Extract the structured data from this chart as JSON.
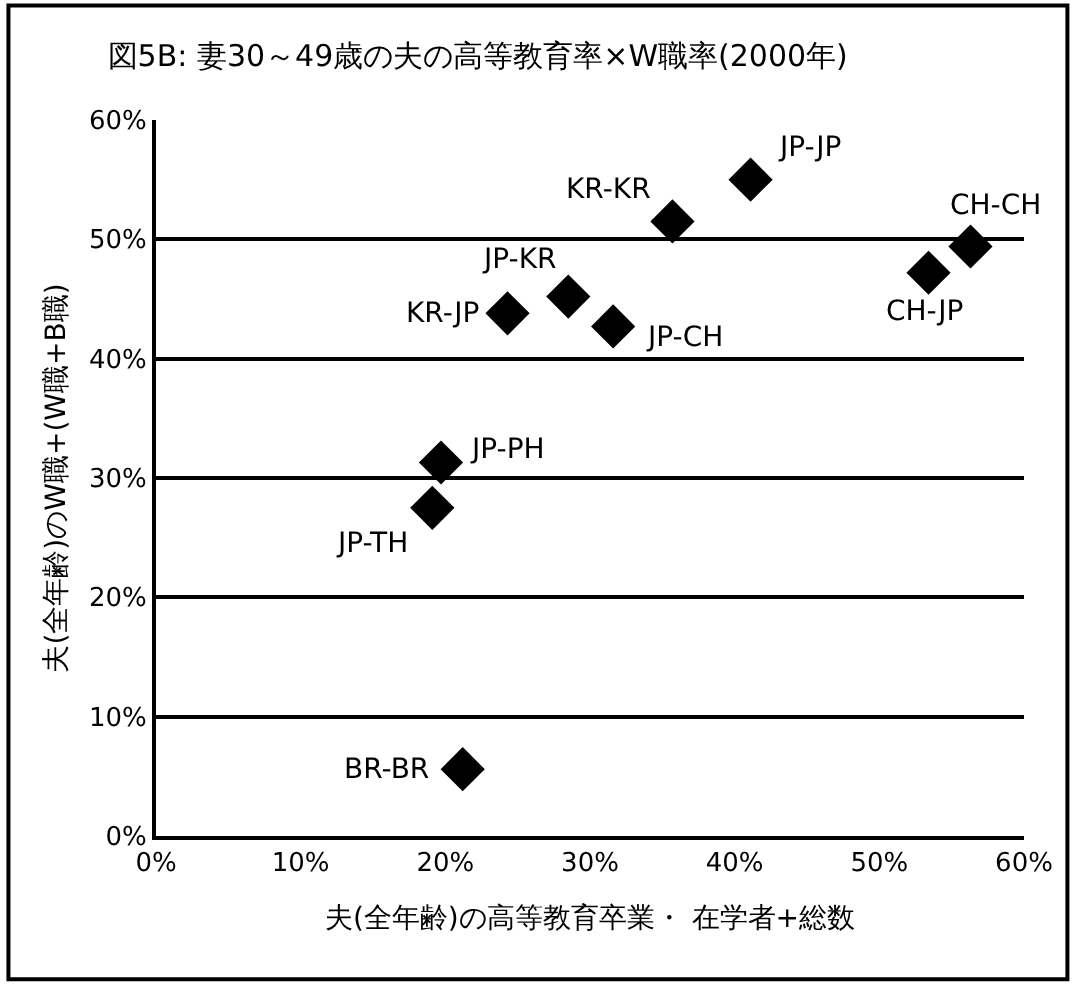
{
  "chart_data": {
    "type": "scatter",
    "title": "図5B: 妻30～49歳の夫の高等教育率×W職率(2000年)",
    "xlabel": "夫(全年齢)の高等教育卒業・ 在学者+総数",
    "ylabel": "夫(全年齢)のW職+(W職+B職)",
    "x": [
      41.1,
      35.7,
      56.3,
      53.4,
      28.5,
      24.3,
      31.6,
      19.7,
      19.1,
      21.2
    ],
    "series": [
      {
        "color": "#000000",
        "values": [
          55.0,
          51.5,
          49.4,
          47.2,
          45.2,
          43.8,
          42.7,
          31.3,
          27.5,
          5.6
        ]
      }
    ],
    "annotations": [
      {
        "text": "JP-JP",
        "x": 41.1,
        "y": 55.0
      },
      {
        "text": "KR-KR",
        "x": 35.7,
        "y": 51.5
      },
      {
        "text": "CH-CH",
        "x": 56.3,
        "y": 49.4
      },
      {
        "text": "CH-JP",
        "x": 53.4,
        "y": 47.2
      },
      {
        "text": "JP-KR",
        "x": 28.5,
        "y": 45.2
      },
      {
        "text": "KR-JP",
        "x": 24.3,
        "y": 43.8
      },
      {
        "text": "JP-CH",
        "x": 31.6,
        "y": 42.7
      },
      {
        "text": "JP-PH",
        "x": 19.7,
        "y": 31.3
      },
      {
        "text": "JP-TH",
        "x": 19.1,
        "y": 27.5
      },
      {
        "text": "BR-BR",
        "x": 21.2,
        "y": 5.6
      }
    ],
    "xlim": [
      0,
      60
    ],
    "ylim": [
      0,
      60
    ],
    "xticks": [
      {
        "value": 0,
        "label": "0%"
      },
      {
        "value": 10,
        "label": "10%"
      },
      {
        "value": 20,
        "label": "20%"
      },
      {
        "value": 30,
        "label": "30%"
      },
      {
        "value": 40,
        "label": "40%"
      },
      {
        "value": 50,
        "label": "50%"
      },
      {
        "value": 60,
        "label": "60%"
      }
    ],
    "yticks": [
      {
        "value": 0,
        "label": "0%"
      },
      {
        "value": 10,
        "label": "10%"
      },
      {
        "value": 20,
        "label": "20%"
      },
      {
        "value": 30,
        "label": "30%"
      },
      {
        "value": 40,
        "label": "40%"
      },
      {
        "value": 50,
        "label": "50%"
      },
      {
        "value": 60,
        "label": "60%"
      }
    ],
    "grid": "y",
    "marker": "diamond"
  }
}
